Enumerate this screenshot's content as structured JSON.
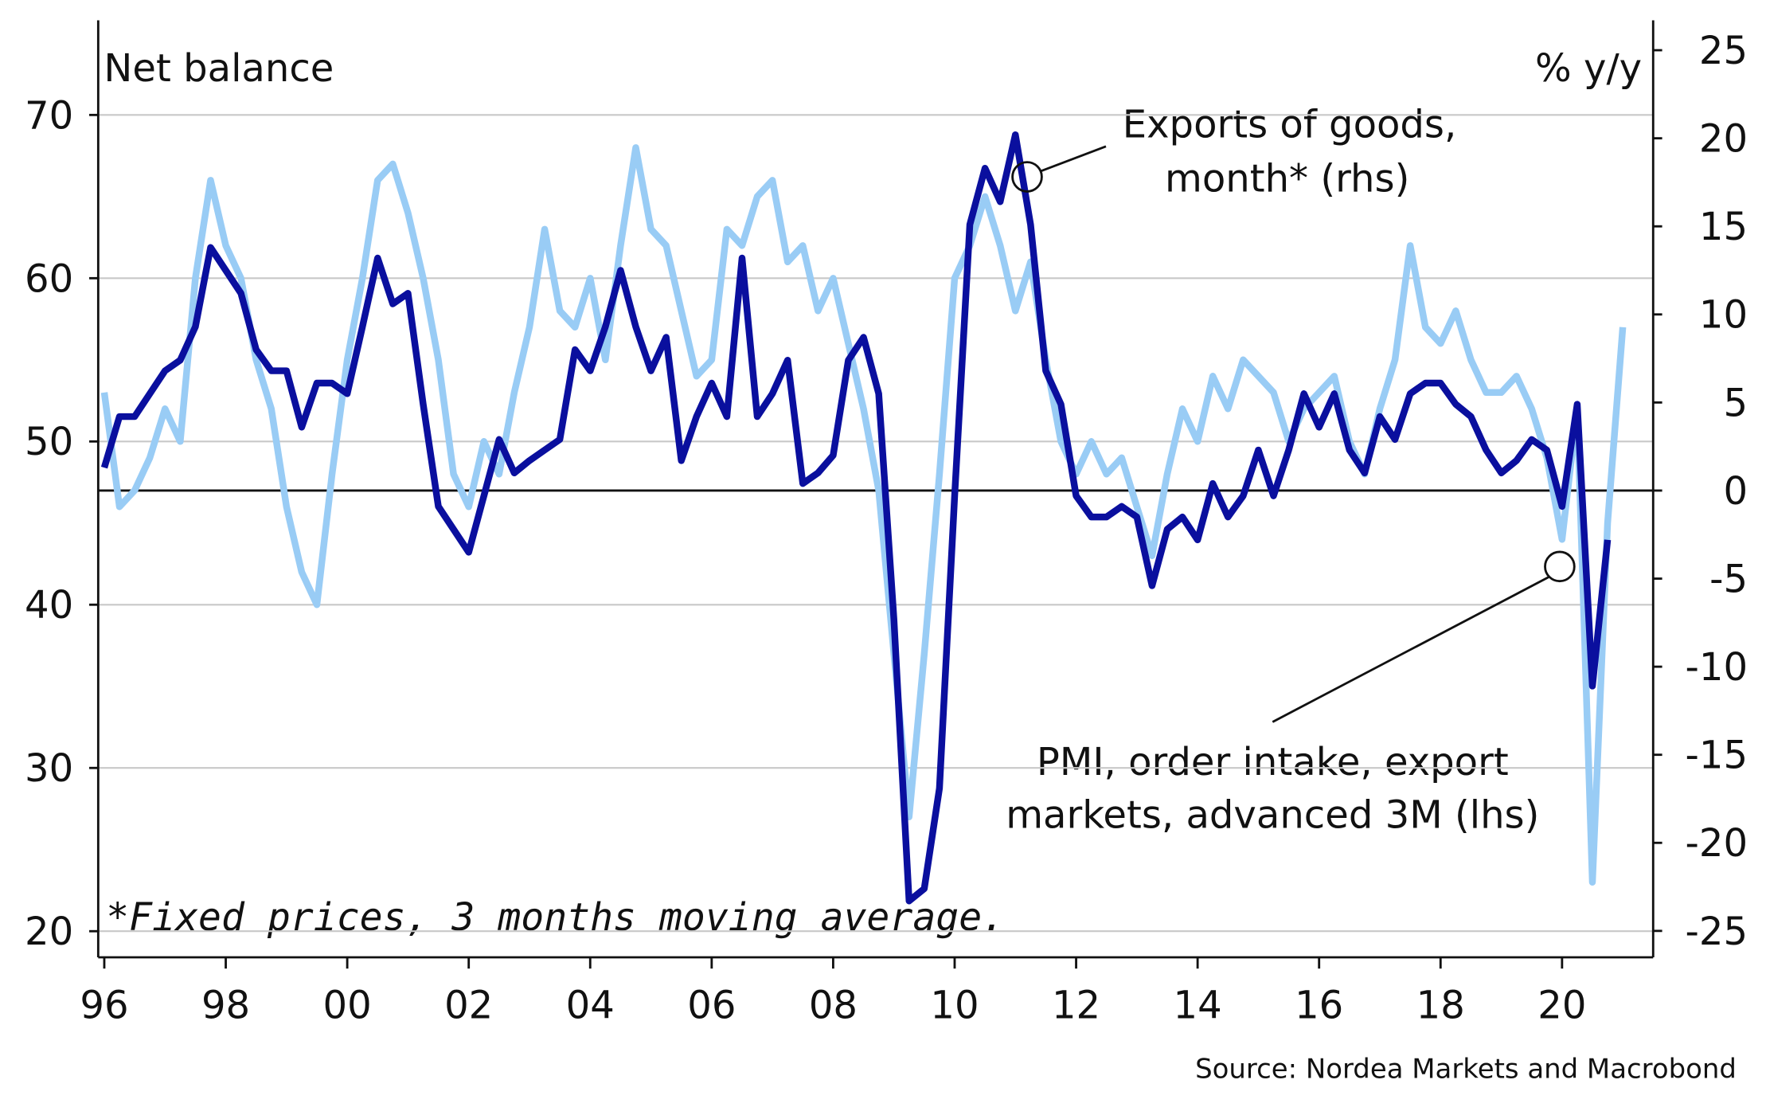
{
  "chart_data": {
    "type": "line",
    "y_label": "Net balance",
    "y2_label": "% y/y",
    "note": "*Fixed prices, 3 months moving average.",
    "source": "Source: Nordea Markets and Macrobond",
    "annotations": [
      {
        "lines": [
          "Exports of goods,",
          "month* (rhs)"
        ]
      },
      {
        "lines": [
          "PMI, order intake, export",
          "markets, advanced 3M (lhs)"
        ]
      }
    ],
    "xlim": [
      1995.9,
      2021.5
    ],
    "xticks": [
      {
        "value": 1996,
        "label": "96"
      },
      {
        "value": 1998,
        "label": "98"
      },
      {
        "value": 2000,
        "label": "00"
      },
      {
        "value": 2002,
        "label": "02"
      },
      {
        "value": 2004,
        "label": "04"
      },
      {
        "value": 2006,
        "label": "06"
      },
      {
        "value": 2008,
        "label": "08"
      },
      {
        "value": 2010,
        "label": "10"
      },
      {
        "value": 2012,
        "label": "12"
      },
      {
        "value": 2014,
        "label": "14"
      },
      {
        "value": 2016,
        "label": "16"
      },
      {
        "value": 2018,
        "label": "18"
      },
      {
        "value": 2020,
        "label": "20"
      }
    ],
    "ylim": [
      18.4,
      75.8
    ],
    "yticks": [
      20,
      30,
      40,
      50,
      60,
      70
    ],
    "y2lim": [
      -26.5,
      26.7
    ],
    "y2ticks": [
      -25,
      -20,
      -15,
      -10,
      -5,
      0,
      5,
      10,
      15,
      20,
      25
    ],
    "grid": true,
    "x": [
      1996,
      1996.25,
      1996.5,
      1996.75,
      1997,
      1997.25,
      1997.5,
      1997.75,
      1998,
      1998.25,
      1998.5,
      1998.75,
      1999,
      1999.25,
      1999.5,
      1999.75,
      2000,
      2000.25,
      2000.5,
      2000.75,
      2001,
      2001.25,
      2001.5,
      2001.75,
      2002,
      2002.25,
      2002.5,
      2002.75,
      2003,
      2003.25,
      2003.5,
      2003.75,
      2004,
      2004.25,
      2004.5,
      2004.75,
      2005,
      2005.25,
      2005.5,
      2005.75,
      2006,
      2006.25,
      2006.5,
      2006.75,
      2007,
      2007.25,
      2007.5,
      2007.75,
      2008,
      2008.25,
      2008.5,
      2008.75,
      2009,
      2009.25,
      2009.5,
      2009.75,
      2010,
      2010.25,
      2010.5,
      2010.75,
      2011,
      2011.25,
      2011.5,
      2011.75,
      2012,
      2012.25,
      2012.5,
      2012.75,
      2013,
      2013.25,
      2013.5,
      2013.75,
      2014,
      2014.25,
      2014.5,
      2014.75,
      2015,
      2015.25,
      2015.5,
      2015.75,
      2016,
      2016.25,
      2016.5,
      2016.75,
      2017,
      2017.25,
      2017.5,
      2017.75,
      2018,
      2018.25,
      2018.5,
      2018.75,
      2019,
      2019.25,
      2019.5,
      2019.75,
      2020,
      2020.25,
      2020.5,
      2020.75,
      2021
    ],
    "series": [
      {
        "name": "PMI, order intake, export markets, advanced 3M (lhs)",
        "color": "#99ccf5",
        "axis": "y",
        "values": [
          53,
          46,
          47,
          49,
          52,
          50,
          60,
          66,
          62,
          60,
          55,
          52,
          46,
          42,
          40,
          48,
          55,
          60,
          66,
          67,
          64,
          60,
          55,
          48,
          46,
          50,
          48,
          53,
          57,
          63,
          58,
          57,
          60,
          55,
          62,
          68,
          63,
          62,
          58,
          54,
          55,
          63,
          62,
          65,
          66,
          61,
          62,
          58,
          60,
          56,
          52,
          47,
          37,
          27,
          37,
          48,
          60,
          62,
          65,
          62,
          58,
          61,
          55,
          50,
          48,
          50,
          48,
          49,
          46,
          43,
          48,
          52,
          50,
          54,
          52,
          55,
          54,
          53,
          50,
          52,
          53,
          54,
          50,
          48,
          52,
          55,
          62,
          57,
          56,
          58,
          55,
          53,
          53,
          54,
          52,
          49,
          44,
          52,
          23,
          45,
          57
        ]
      },
      {
        "name": "Exports of goods, month* (rhs)",
        "color": "#0a0f9e",
        "axis": "y2",
        "values": [
          1.3,
          4.2,
          4.2,
          5.5,
          6.8,
          7.4,
          9.3,
          13.8,
          12.5,
          11.2,
          8,
          6.8,
          6.8,
          3.6,
          6.1,
          6.1,
          5.5,
          9.3,
          13.2,
          10.6,
          11.2,
          4.9,
          -0.9,
          -2.2,
          -3.5,
          -0.3,
          2.9,
          1,
          1.7,
          2.3,
          2.9,
          8,
          6.8,
          9.3,
          12.5,
          9.3,
          6.8,
          8.7,
          1.7,
          4.2,
          6.1,
          4.2,
          13.2,
          4.2,
          5.5,
          7.4,
          0.4,
          1,
          2,
          7.4,
          8.7,
          5.5,
          -7.3,
          -23.3,
          -22.6,
          -16.9,
          -0.3,
          15.1,
          18.3,
          16.4,
          20.2,
          15.1,
          6.8,
          4.9,
          -0.3,
          -1.5,
          -1.5,
          -0.9,
          -1.5,
          -5.4,
          -2.2,
          -1.5,
          -2.8,
          0.4,
          -1.5,
          -0.3,
          2.3,
          -0.3,
          2.3,
          5.5,
          3.6,
          5.5,
          2.3,
          1,
          4.2,
          2.9,
          5.5,
          6.1,
          6.1,
          4.9,
          4.2,
          2.3,
          1,
          1.7,
          2.9,
          2.3,
          -0.9,
          4.9,
          -11.1,
          -2.8,
          null
        ]
      }
    ]
  }
}
